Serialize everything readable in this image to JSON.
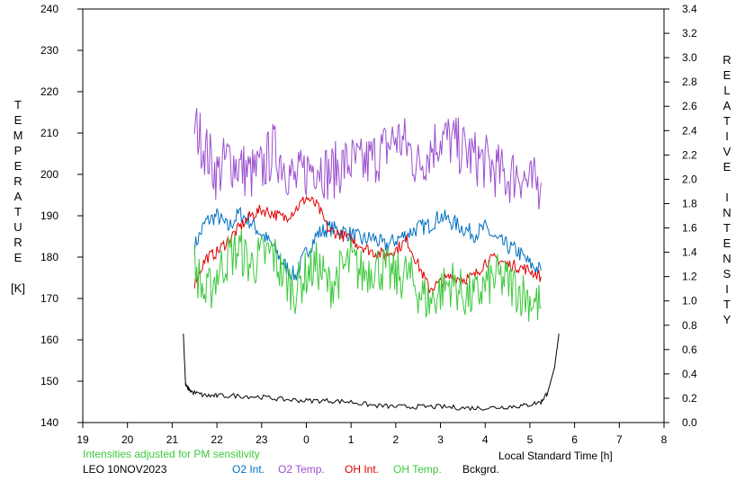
{
  "chart_data": {
    "type": "line",
    "title": "",
    "xlabel": "Local Standard Time [h]",
    "ylabel_left": [
      "T",
      "E",
      "M",
      "P",
      "E",
      "R",
      "A",
      "T",
      "U",
      "R",
      "E",
      "",
      "[K]"
    ],
    "ylabel_right": [
      "R",
      "E",
      "L",
      "A",
      "T",
      "I",
      "V",
      "E",
      "",
      "I",
      "N",
      "T",
      "E",
      "N",
      "S",
      "I",
      "T",
      "Y"
    ],
    "x_ticks": [
      "19",
      "20",
      "21",
      "22",
      "23",
      "0",
      "1",
      "2",
      "3",
      "4",
      "5",
      "6",
      "7",
      "8"
    ],
    "x_range": [
      19,
      32
    ],
    "y_left_ticks": [
      "140",
      "150",
      "160",
      "170",
      "180",
      "190",
      "200",
      "210",
      "220",
      "230",
      "240"
    ],
    "y_left_range": [
      140,
      240
    ],
    "y_right_ticks": [
      "0.0",
      "0.2",
      "0.4",
      "0.6",
      "0.8",
      "1.0",
      "1.2",
      "1.4",
      "1.6",
      "1.8",
      "2.0",
      "2.2",
      "2.4",
      "2.6",
      "2.8",
      "3.0",
      "3.2",
      "3.4"
    ],
    "y_right_range": [
      0,
      3.4
    ],
    "note": "Intensities adjusted for PM sensitivity",
    "station": "LEO 10NOV2023",
    "series": [
      {
        "name": "O2 Int.",
        "color": "#0070c0",
        "axis": "right",
        "x": [
          21.5,
          21.75,
          22.0,
          22.25,
          22.5,
          22.75,
          23.0,
          23.25,
          23.5,
          23.75,
          24.0,
          24.25,
          24.5,
          24.75,
          25.0,
          25.25,
          25.5,
          25.75,
          26.0,
          26.25,
          26.5,
          26.75,
          27.0,
          27.25,
          27.5,
          27.75,
          28.0,
          28.25,
          28.5,
          28.75,
          29.0,
          29.25
        ],
        "y": [
          1.45,
          1.65,
          1.7,
          1.6,
          1.72,
          1.65,
          1.55,
          1.45,
          1.3,
          1.2,
          1.4,
          1.55,
          1.6,
          1.58,
          1.55,
          1.5,
          1.52,
          1.45,
          1.5,
          1.55,
          1.6,
          1.62,
          1.7,
          1.65,
          1.6,
          1.55,
          1.6,
          1.5,
          1.45,
          1.4,
          1.3,
          1.25
        ]
      },
      {
        "name": "O2 Temp.",
        "color": "#9b4fcf",
        "axis": "left",
        "x": [
          21.5,
          21.75,
          22.0,
          22.25,
          22.5,
          22.75,
          23.0,
          23.25,
          23.5,
          23.75,
          24.0,
          24.25,
          24.5,
          24.75,
          25.0,
          25.25,
          25.5,
          25.75,
          26.0,
          26.25,
          26.5,
          26.75,
          27.0,
          27.25,
          27.5,
          27.75,
          28.0,
          28.25,
          28.5,
          28.75,
          29.0,
          29.25
        ],
        "y": [
          212,
          206,
          200,
          204,
          202,
          200,
          201,
          206,
          203,
          198,
          201,
          203,
          200,
          202,
          203,
          202,
          204,
          206,
          209,
          207,
          202,
          206,
          209,
          208,
          206,
          204,
          203,
          201,
          199,
          201,
          197,
          198
        ]
      },
      {
        "name": "OH Int.",
        "color": "#e00000",
        "axis": "right",
        "x": [
          21.5,
          21.75,
          22.0,
          22.25,
          22.5,
          22.75,
          23.0,
          23.25,
          23.5,
          23.75,
          24.0,
          24.25,
          24.5,
          24.75,
          25.0,
          25.25,
          25.5,
          25.75,
          26.0,
          26.25,
          26.5,
          26.75,
          27.0,
          27.25,
          27.5,
          27.75,
          28.0,
          28.25,
          28.5,
          28.75,
          29.0,
          29.25
        ],
        "y": [
          1.15,
          1.35,
          1.4,
          1.5,
          1.6,
          1.7,
          1.75,
          1.72,
          1.68,
          1.75,
          1.85,
          1.78,
          1.58,
          1.55,
          1.5,
          1.45,
          1.4,
          1.38,
          1.42,
          1.5,
          1.3,
          1.1,
          1.15,
          1.2,
          1.18,
          1.2,
          1.32,
          1.35,
          1.3,
          1.28,
          1.25,
          1.2
        ]
      },
      {
        "name": "OH Temp.",
        "color": "#3cc83c",
        "axis": "left",
        "x": [
          21.5,
          21.75,
          22.0,
          22.25,
          22.5,
          22.75,
          23.0,
          23.25,
          23.5,
          23.75,
          24.0,
          24.25,
          24.5,
          24.75,
          25.0,
          25.25,
          25.5,
          25.75,
          26.0,
          26.25,
          26.5,
          26.75,
          27.0,
          27.25,
          27.5,
          27.75,
          28.0,
          28.25,
          28.5,
          28.75,
          29.0,
          29.25
        ],
        "y": [
          178,
          170,
          176,
          180,
          182,
          178,
          180,
          181,
          175,
          172,
          176,
          178,
          173,
          176,
          179,
          176,
          178,
          177,
          175,
          176,
          172,
          169,
          172,
          174,
          171,
          170,
          173,
          175,
          174,
          172,
          170,
          168
        ]
      },
      {
        "name": "Bckgrd.",
        "color": "#000000",
        "axis": "right",
        "x": [
          21.25,
          21.3,
          21.45,
          21.75,
          22.0,
          22.5,
          23.0,
          23.5,
          24.0,
          24.5,
          25.0,
          25.5,
          26.0,
          26.5,
          27.0,
          27.5,
          28.0,
          28.5,
          28.9,
          29.25,
          29.4,
          29.55,
          29.65
        ],
        "y": [
          0.73,
          0.3,
          0.25,
          0.22,
          0.22,
          0.22,
          0.21,
          0.19,
          0.18,
          0.18,
          0.17,
          0.14,
          0.13,
          0.13,
          0.13,
          0.12,
          0.12,
          0.13,
          0.14,
          0.17,
          0.25,
          0.45,
          0.73
        ]
      }
    ]
  }
}
